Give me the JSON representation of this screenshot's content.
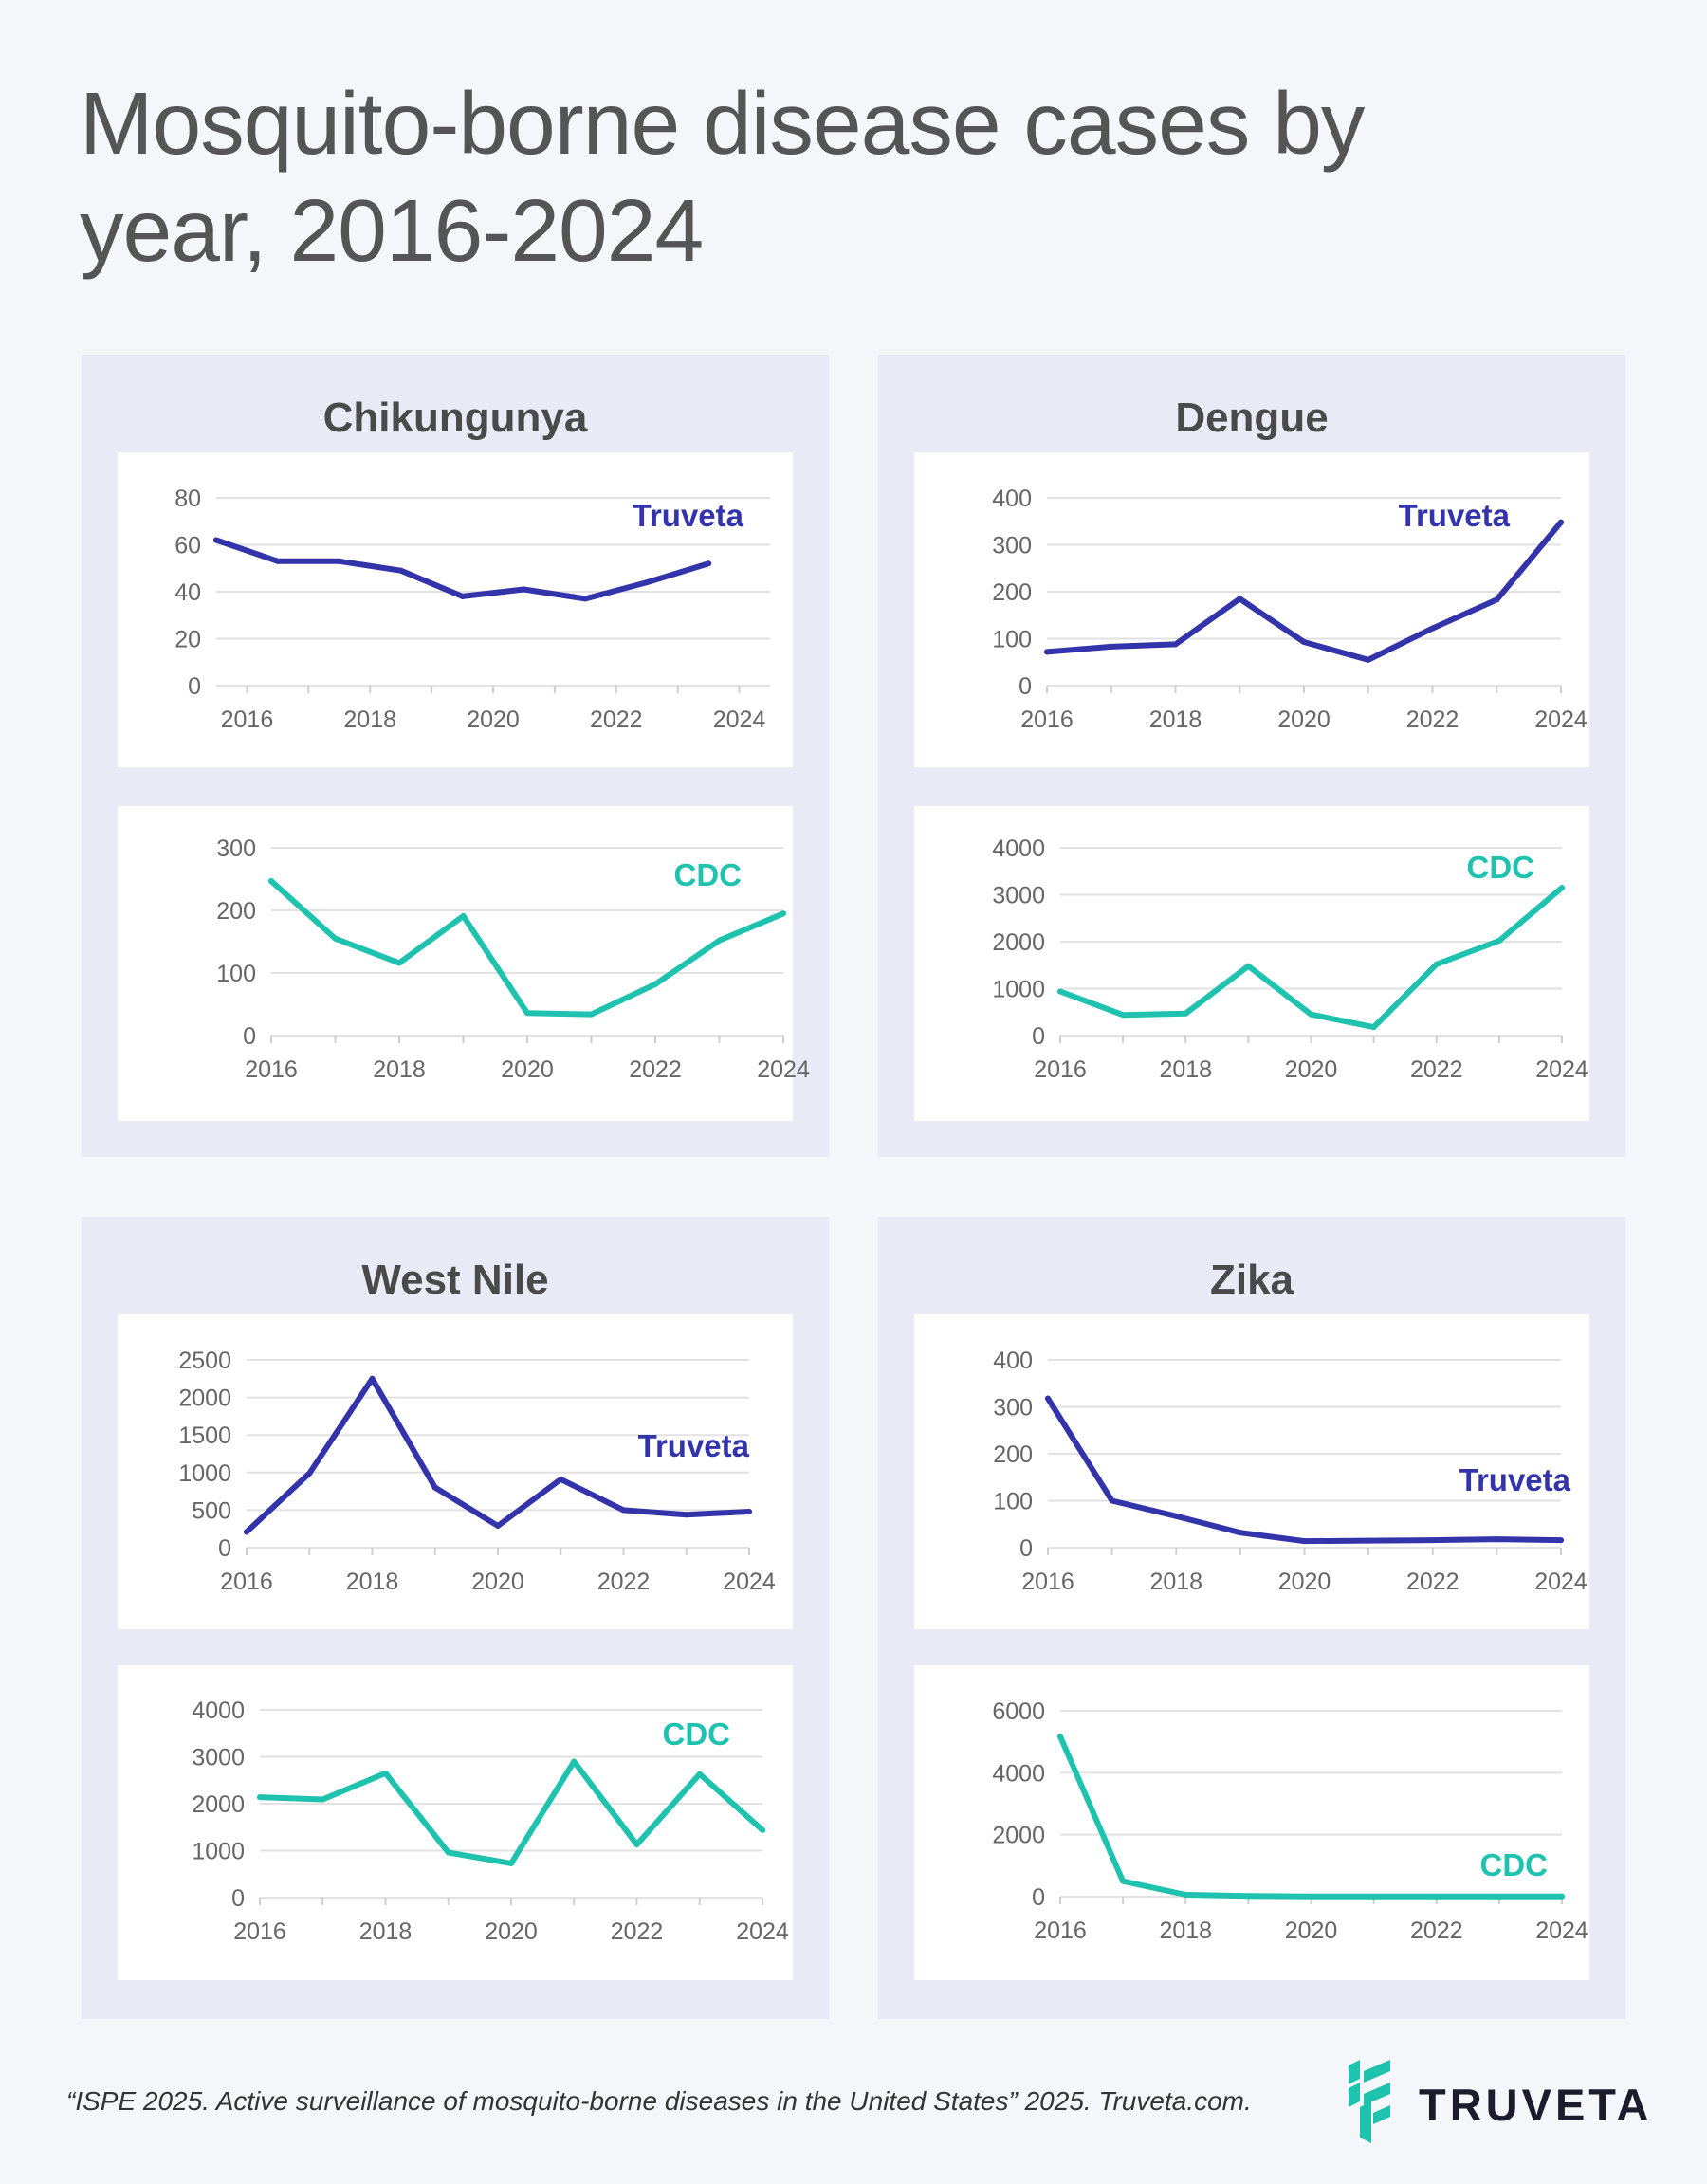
{
  "title": "Mosquito-borne disease cases by year, 2016-2024",
  "footer": "“ISPE 2025. Active surveillance of mosquito-borne diseases in the United States” 2025. Truveta.com.",
  "brand": {
    "name": "TRUVETA",
    "logo_icon": "truveta-logo-icon"
  },
  "colors": {
    "truveta": "#3333aa",
    "cdc": "#1ec2ae",
    "panel_bg": "#eaeaf6",
    "grid": "#e2e2e2",
    "tick_text": "#666666"
  },
  "chart_data": [
    {
      "panel": "Chikungunya",
      "series_label": "Truveta",
      "type": "line",
      "color": "#3333aa",
      "x": [
        2015.5,
        2016.5,
        2017.5,
        2018.5,
        2019.5,
        2020.5,
        2021.5,
        2022.5,
        2023.5
      ],
      "y": [
        62,
        53,
        53,
        49,
        38,
        41,
        37,
        44,
        52
      ],
      "xlim": [
        2015.5,
        2024.5
      ],
      "ylim": [
        0,
        80
      ],
      "yticks": [
        "0",
        "20",
        "40",
        "60",
        "80"
      ],
      "xticks": [
        "2016",
        "2018",
        "2020",
        "2022",
        "2024"
      ]
    },
    {
      "panel": "Chikungunya",
      "series_label": "CDC",
      "type": "line",
      "color": "#1ec2ae",
      "x": [
        2016,
        2017,
        2018,
        2019,
        2020,
        2021,
        2022,
        2023,
        2024
      ],
      "y": [
        247,
        155,
        116,
        191,
        36,
        34,
        82,
        152,
        195
      ],
      "xlim": [
        2016,
        2024
      ],
      "ylim": [
        0,
        300
      ],
      "yticks": [
        "0",
        "100",
        "200",
        "300"
      ],
      "xticks": [
        "2016",
        "2018",
        "2020",
        "2022",
        "2024"
      ]
    },
    {
      "panel": "Dengue",
      "series_label": "Truveta",
      "type": "line",
      "color": "#3333aa",
      "x": [
        2016,
        2017,
        2018,
        2019,
        2020,
        2021,
        2022,
        2023,
        2024
      ],
      "y": [
        72,
        83,
        88,
        185,
        93,
        55,
        122,
        183,
        348
      ],
      "xlim": [
        2016,
        2024
      ],
      "ylim": [
        0,
        400
      ],
      "yticks": [
        "0",
        "100",
        "200",
        "300",
        "400"
      ],
      "xticks": [
        "2016",
        "2018",
        "2020",
        "2022",
        "2024"
      ]
    },
    {
      "panel": "Dengue",
      "series_label": "CDC",
      "type": "line",
      "color": "#1ec2ae",
      "x": [
        2016,
        2017,
        2018,
        2019,
        2020,
        2021,
        2022,
        2023,
        2024
      ],
      "y": [
        940,
        440,
        470,
        1480,
        450,
        180,
        1520,
        2020,
        3150
      ],
      "xlim": [
        2016,
        2024
      ],
      "ylim": [
        0,
        4000
      ],
      "yticks": [
        "0",
        "1000",
        "2000",
        "3000",
        "4000"
      ],
      "xticks": [
        "2016",
        "2018",
        "2020",
        "2022",
        "2024"
      ]
    },
    {
      "panel": "West Nile",
      "series_label": "Truveta",
      "type": "line",
      "color": "#3333aa",
      "x": [
        2016,
        2017,
        2018,
        2019,
        2020,
        2021,
        2022,
        2023,
        2024
      ],
      "y": [
        210,
        990,
        2250,
        800,
        290,
        910,
        500,
        440,
        480
      ],
      "xlim": [
        2016,
        2024
      ],
      "ylim": [
        0,
        2500
      ],
      "yticks": [
        "0",
        "500",
        "1000",
        "1500",
        "2000",
        "2500"
      ],
      "xticks": [
        "2016",
        "2018",
        "2020",
        "2022",
        "2024"
      ]
    },
    {
      "panel": "West Nile",
      "series_label": "CDC",
      "type": "line",
      "color": "#1ec2ae",
      "x": [
        2016,
        2017,
        2018,
        2019,
        2020,
        2021,
        2022,
        2023,
        2024
      ],
      "y": [
        2140,
        2090,
        2650,
        960,
        730,
        2900,
        1130,
        2630,
        1440
      ],
      "xlim": [
        2016,
        2024
      ],
      "ylim": [
        0,
        4000
      ],
      "yticks": [
        "0",
        "1000",
        "2000",
        "3000",
        "4000"
      ],
      "xticks": [
        "2016",
        "2018",
        "2020",
        "2022",
        "2024"
      ]
    },
    {
      "panel": "Zika",
      "series_label": "Truveta",
      "type": "line",
      "color": "#3333aa",
      "x": [
        2016,
        2017,
        2018,
        2019,
        2020,
        2021,
        2022,
        2023,
        2024
      ],
      "y": [
        318,
        100,
        67,
        32,
        14,
        15,
        16,
        18,
        16
      ],
      "xlim": [
        2016,
        2024
      ],
      "ylim": [
        0,
        400
      ],
      "yticks": [
        "0",
        "100",
        "200",
        "300",
        "400"
      ],
      "xticks": [
        "2016",
        "2018",
        "2020",
        "2022",
        "2024"
      ]
    },
    {
      "panel": "Zika",
      "series_label": "CDC",
      "type": "line",
      "color": "#1ec2ae",
      "x": [
        2016,
        2017,
        2018,
        2019,
        2020,
        2021,
        2022,
        2023,
        2024
      ],
      "y": [
        5170,
        500,
        60,
        20,
        10,
        5,
        5,
        5,
        10
      ],
      "xlim": [
        2016,
        2024
      ],
      "ylim": [
        0,
        6000
      ],
      "yticks": [
        "0",
        "2000",
        "4000",
        "6000"
      ],
      "xticks": [
        "2016",
        "2018",
        "2020",
        "2022",
        "2024"
      ]
    }
  ]
}
